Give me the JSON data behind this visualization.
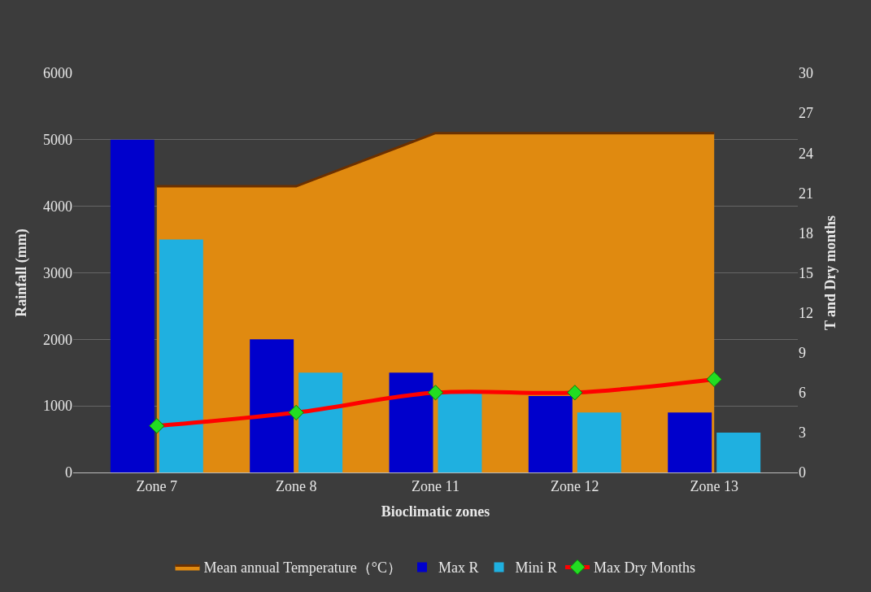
{
  "chart_data": {
    "type": "bar",
    "xlabel": "Bioclimatic zones",
    "ylabel": "Rainfall (mm)",
    "y2label": "T and Dry months",
    "categories": [
      "Zone 7",
      "Zone 8",
      "Zone 11",
      "Zone 12",
      "Zone 13"
    ],
    "series": [
      {
        "name": "Mean annual Temperature（°C）",
        "type": "area",
        "axis": "y2",
        "color": "#e08a10",
        "values": [
          21.5,
          21.5,
          25.5,
          25.5,
          25.5
        ]
      },
      {
        "name": "Max R",
        "color": "#0000cc",
        "values": [
          5000,
          2000,
          1500,
          1150,
          900
        ]
      },
      {
        "name": "Mini R",
        "color": "#1fb0e0",
        "values": [
          3500,
          1500,
          1200,
          900,
          600
        ]
      },
      {
        "name": "Max Dry Months",
        "type": "line",
        "axis": "y2",
        "color": "#ff0000",
        "marker": "diamond",
        "values": [
          3.5,
          4.5,
          6,
          6,
          7
        ]
      }
    ],
    "ylim": [
      0,
      6000
    ],
    "yticks": [
      0,
      1000,
      2000,
      3000,
      4000,
      5000,
      6000
    ],
    "y2lim": [
      0,
      30
    ],
    "y2ticks": [
      0,
      3,
      6,
      9,
      12,
      15,
      18,
      21,
      24,
      27,
      30
    ],
    "grid": "y",
    "legend": "bottom"
  }
}
